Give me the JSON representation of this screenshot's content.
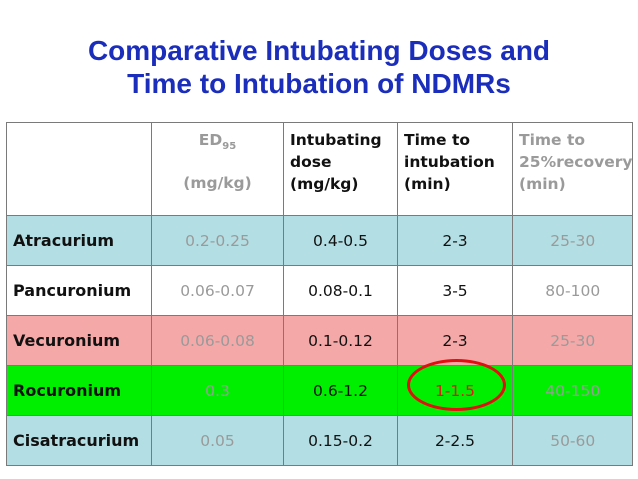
{
  "title": {
    "line1": "Comparative Intubating Doses and",
    "line2": "Time to Intubation of NDMRs"
  },
  "colors": {
    "title": "#1a2dbb",
    "row_cyan": "#b3dfe4",
    "row_pink": "#f5a8a8",
    "row_green": "#00ee00",
    "row_white": "#ffffff",
    "highlight_circle": "#e01010"
  },
  "table": {
    "headers": {
      "ed95": {
        "main": "ED",
        "sub": "95",
        "unit": "(mg/kg)"
      },
      "intubating_dose": [
        "Intubating",
        "dose",
        "(mg/kg)"
      ],
      "time_to_intubation": [
        "Time to",
        "intubation",
        "(min)"
      ],
      "time_to_recovery": [
        "Time to",
        "25%recovery",
        "(min)"
      ]
    },
    "rows": [
      {
        "drug": "Atracurium",
        "ed95": "0.2-0.25",
        "dose": "0.4-0.5",
        "time": "2-3",
        "recovery": "25-30",
        "color": "#b3dfe4"
      },
      {
        "drug": "Pancuronium",
        "ed95": "0.06-0.07",
        "dose": "0.08-0.1",
        "time": "3-5",
        "recovery": "80-100",
        "color": "#ffffff"
      },
      {
        "drug": "Vecuronium",
        "ed95": "0.06-0.08",
        "dose": "0.1-0.12",
        "time": "2-3",
        "recovery": "25-30",
        "color": "#f5a8a8"
      },
      {
        "drug": "Rocuronium",
        "ed95": "0.3",
        "dose": "0.6-1.2",
        "time": "1-1.5",
        "recovery": "40-150",
        "color": "#00ee00"
      },
      {
        "drug": "Cisatracurium",
        "ed95": "0.05",
        "dose": "0.15-0.2",
        "time": "2-2.5",
        "recovery": "50-60",
        "color": "#b3dfe4"
      }
    ]
  }
}
